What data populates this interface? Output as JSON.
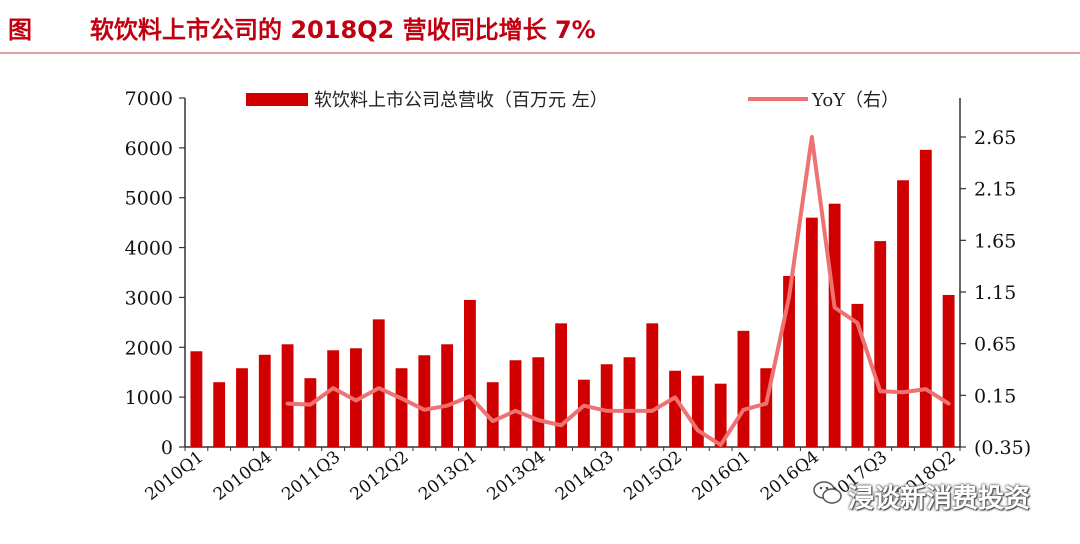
{
  "header": {
    "figure_label": "图",
    "title": "软饮料上市公司的 2018Q2 营收同比增长 7%"
  },
  "watermark": {
    "text": "浸谈新消费投资",
    "icon": "wechat-icon"
  },
  "colors": {
    "bar": "#d00000",
    "line": "#ee7272",
    "title": "#c0000f"
  },
  "chart_data": {
    "type": "bar",
    "legend": {
      "placement": "top",
      "bar_label": "软饮料上市公司总营收（百万元 左）",
      "line_label": "YoY（右）"
    },
    "x": [
      "2010Q1",
      "2010Q2",
      "2010Q3",
      "2010Q4",
      "2011Q1",
      "2011Q2",
      "2011Q3",
      "2011Q4",
      "2012Q1",
      "2012Q2",
      "2012Q3",
      "2012Q4",
      "2013Q1",
      "2013Q2",
      "2013Q3",
      "2013Q4",
      "2014Q1",
      "2014Q2",
      "2014Q3",
      "2014Q4",
      "2015Q1",
      "2015Q2",
      "2015Q3",
      "2015Q4",
      "2016Q1",
      "2016Q2",
      "2016Q3",
      "2016Q4",
      "2017Q1",
      "2017Q2",
      "2017Q3",
      "2017Q4",
      "2018Q1",
      "2018Q2"
    ],
    "x_tick_labels": [
      "2010Q1",
      "2010Q4",
      "2011Q3",
      "2012Q2",
      "2013Q1",
      "2013Q4",
      "2014Q3",
      "2015Q2",
      "2016Q1",
      "2016Q4",
      "2017Q3",
      "2018Q2"
    ],
    "series": [
      {
        "name": "软饮料上市公司总营收（百万元 左）",
        "type": "bar",
        "axis": "left",
        "values": [
          1920,
          1300,
          1580,
          1850,
          2060,
          1380,
          1940,
          1980,
          2560,
          1580,
          1840,
          2060,
          2950,
          1300,
          1740,
          1800,
          2480,
          1350,
          1660,
          1800,
          2480,
          1530,
          1430,
          1270,
          2330,
          1580,
          3430,
          4600,
          4880,
          2870,
          4130,
          5350,
          5960,
          3050
        ]
      },
      {
        "name": "YoY（右）",
        "type": "line",
        "axis": "right",
        "values": [
          null,
          null,
          null,
          null,
          0.07,
          0.06,
          0.22,
          0.1,
          0.22,
          0.12,
          0.01,
          0.05,
          0.14,
          -0.1,
          0.0,
          -0.09,
          -0.14,
          0.05,
          0.0,
          0.0,
          0.0,
          0.13,
          -0.19,
          -0.33,
          0.01,
          0.07,
          1.1,
          2.65,
          1.0,
          0.85,
          0.19,
          0.18,
          0.21,
          0.07
        ]
      }
    ],
    "y_left": {
      "ylim": [
        0,
        7000
      ],
      "ticks": [
        "0",
        "1000",
        "2000",
        "3000",
        "4000",
        "5000",
        "6000",
        "7000"
      ]
    },
    "y_right": {
      "ylim": [
        -0.35,
        2.65
      ],
      "ticks": [
        "(0.35)",
        "0.15",
        "0.65",
        "1.15",
        "1.65",
        "2.15",
        "2.65"
      ]
    },
    "grid": false
  }
}
